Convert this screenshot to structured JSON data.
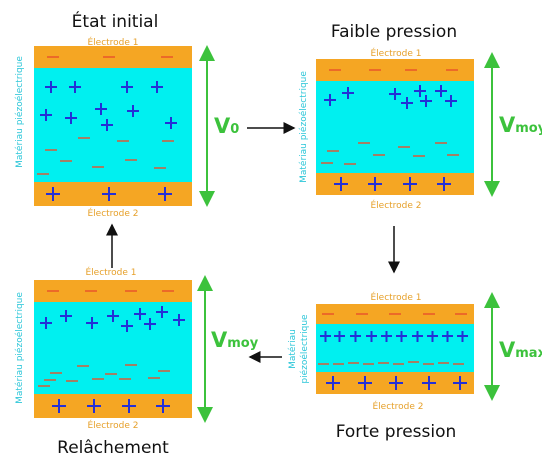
{
  "panels": {
    "initial": {
      "title": "État initial",
      "top_electrode": "Électrode 1",
      "bottom_electrode": "Électrode 2",
      "material": "Matériau piézoélectrique",
      "voltage": "V",
      "voltage_sub": "0"
    },
    "low": {
      "title": "Faible pression",
      "top_electrode": "Électrode 1",
      "bottom_electrode": "Électrode 2",
      "material": "Matériau piézoélectrique",
      "voltage": "V",
      "voltage_sub": "moy"
    },
    "high": {
      "title": "Forte pression",
      "top_electrode": "Électrode 1",
      "bottom_electrode": "Électrode 2",
      "material_line1": "Matériau",
      "material_line2": "piézoélectrique",
      "voltage": "V",
      "voltage_sub": "max"
    },
    "release": {
      "title": "Relâchement",
      "top_electrode": "Électrode 1",
      "bottom_electrode": "Électrode 2",
      "material": "Matériau piézoélectrique",
      "voltage": "V",
      "voltage_sub": "moy"
    }
  },
  "colors": {
    "electrode": "#f5a623",
    "material": "#00f0f0",
    "plus": "#2430d6",
    "minus": "#e8502a",
    "voltage": "#3cc23c"
  }
}
